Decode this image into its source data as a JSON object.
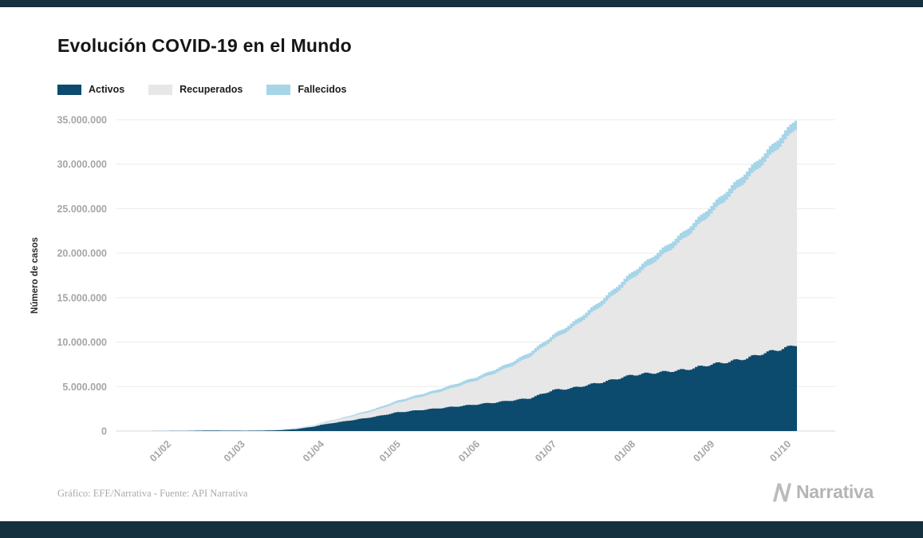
{
  "page": {
    "title": "Evolución COVID-19 en el Mundo",
    "footer_source": "Gráfico: EFE/Narrativa - Fuente: API Narrativa",
    "brand": "Narrativa",
    "colors": {
      "accent_bar": "#15303e",
      "brand_gray": "#b5b5b5",
      "title_text": "#151515",
      "axis_text": "#a6a6a6"
    }
  },
  "chart_data": {
    "type": "area",
    "stacked": true,
    "title": "Evolución COVID-19 en el Mundo",
    "xlabel": "",
    "ylabel": "Número de casos",
    "ylim": [
      0,
      35000000
    ],
    "x_domain_days": [
      -10,
      272
    ],
    "grid": true,
    "legend_position": "top-left",
    "y_ticks": [
      {
        "value": 0,
        "label": "0"
      },
      {
        "value": 5000000,
        "label": "5.000.000"
      },
      {
        "value": 10000000,
        "label": "10.000.000"
      },
      {
        "value": 15000000,
        "label": "15.000.000"
      },
      {
        "value": 20000000,
        "label": "20.000.000"
      },
      {
        "value": 25000000,
        "label": "25.000.000"
      },
      {
        "value": 30000000,
        "label": "30.000.000"
      },
      {
        "value": 35000000,
        "label": "35.000.000"
      }
    ],
    "x_ticks": [
      {
        "day": 10,
        "label": "01/02"
      },
      {
        "day": 39,
        "label": "01/03"
      },
      {
        "day": 70,
        "label": "01/04"
      },
      {
        "day": 100,
        "label": "01/05"
      },
      {
        "day": 131,
        "label": "01/06"
      },
      {
        "day": 161,
        "label": "01/07"
      },
      {
        "day": 192,
        "label": "01/08"
      },
      {
        "day": 223,
        "label": "01/09"
      },
      {
        "day": 253,
        "label": "01/10"
      }
    ],
    "x_days": [
      0,
      10,
      17,
      24,
      31,
      39,
      46,
      53,
      60,
      67,
      70,
      77,
      84,
      91,
      100,
      107,
      114,
      121,
      131,
      138,
      145,
      152,
      161,
      168,
      175,
      182,
      192,
      199,
      206,
      213,
      223,
      230,
      237,
      244,
      253,
      256
    ],
    "x_dates": [
      "22/01",
      "01/02",
      "08/02",
      "15/02",
      "22/02",
      "01/03",
      "08/03",
      "15/03",
      "22/03",
      "29/03",
      "01/04",
      "08/04",
      "15/04",
      "22/04",
      "01/05",
      "08/05",
      "15/05",
      "22/05",
      "01/06",
      "08/06",
      "15/06",
      "22/06",
      "01/07",
      "08/07",
      "15/07",
      "22/07",
      "01/08",
      "08/08",
      "15/08",
      "22/08",
      "01/09",
      "08/09",
      "15/09",
      "22/09",
      "01/10",
      "04/10"
    ],
    "series": [
      {
        "name": "Activos",
        "color": "#0c4a6e",
        "values": [
          500,
          11000,
          31000,
          51000,
          49000,
          40000,
          43000,
          87000,
          210000,
          490000,
          690000,
          1000000,
          1300000,
          1600000,
          2100000,
          2300000,
          2500000,
          2700000,
          3000000,
          3200000,
          3450000,
          3700000,
          4600000,
          4800000,
          5200000,
          5600000,
          6300000,
          6500000,
          6700000,
          6900000,
          7500000,
          7800000,
          8200000,
          8800000,
          9400000,
          9700000
        ]
      },
      {
        "name": "Recuperados",
        "color": "#e7e7e7",
        "values": [
          30,
          250,
          2600,
          8500,
          18500,
          45000,
          60000,
          76000,
          98000,
          140000,
          195000,
          300000,
          510000,
          700000,
          1080000,
          1400000,
          1710000,
          2100000,
          2700000,
          3300000,
          3900000,
          4700000,
          5700000,
          6700000,
          7800000,
          9000000,
          10900000,
          12200000,
          13500000,
          14900000,
          17000000,
          18600000,
          20100000,
          21500000,
          23600000,
          24300000
        ]
      },
      {
        "name": "Fallecidos",
        "color": "#a6d5e8",
        "values": [
          20,
          260,
          810,
          1700,
          2500,
          3000,
          3800,
          6500,
          14500,
          34000,
          47000,
          83000,
          134000,
          183000,
          238000,
          274000,
          308000,
          340000,
          375000,
          406000,
          436000,
          471000,
          512000,
          546000,
          582000,
          620000,
          682000,
          724000,
          766000,
          805000,
          857000,
          897000,
          937000,
          972000,
          1015000,
          1040000
        ]
      }
    ]
  }
}
